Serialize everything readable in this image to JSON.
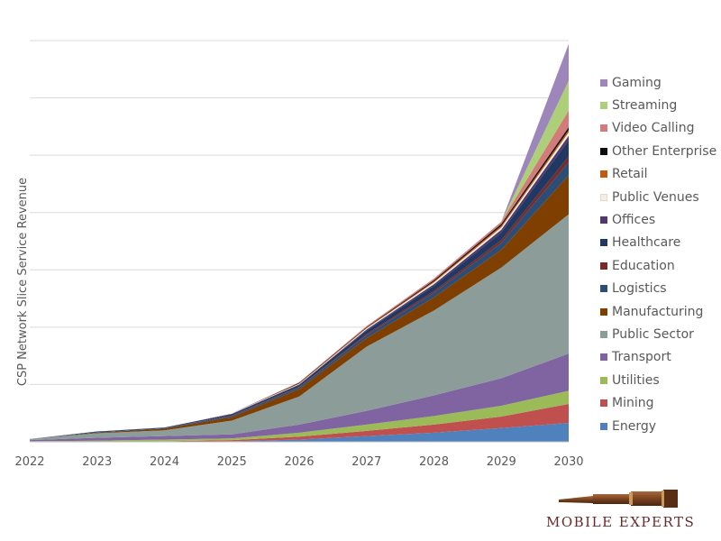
{
  "chart_data": {
    "type": "area",
    "stacked": true,
    "title": "",
    "xlabel": "",
    "ylabel": "CSP Network Slice Service Revenue",
    "x": [
      "2022",
      "2023",
      "2024",
      "2025",
      "2026",
      "2027",
      "2028",
      "2029",
      "2030"
    ],
    "ylim": [
      0,
      7
    ],
    "gridlines": true,
    "legend_position": "right",
    "series": [
      {
        "name": "Energy",
        "color": "#4f81bd",
        "values": [
          0,
          0,
          0,
          0.01,
          0.04,
          0.1,
          0.16,
          0.24,
          0.33
        ]
      },
      {
        "name": "Mining",
        "color": "#c0504d",
        "values": [
          0,
          0,
          0.01,
          0.02,
          0.05,
          0.09,
          0.14,
          0.2,
          0.33
        ]
      },
      {
        "name": "Utilities",
        "color": "#9bbb59",
        "values": [
          0.01,
          0.02,
          0.03,
          0.03,
          0.07,
          0.11,
          0.15,
          0.19,
          0.23
        ]
      },
      {
        "name": "Transport",
        "color": "#8064a2",
        "values": [
          0.02,
          0.05,
          0.06,
          0.07,
          0.14,
          0.24,
          0.36,
          0.48,
          0.65
        ]
      },
      {
        "name": "Public Sector",
        "color": "#8c9c98",
        "values": [
          0.02,
          0.08,
          0.1,
          0.24,
          0.49,
          1.12,
          1.48,
          1.93,
          2.43
        ]
      },
      {
        "name": "Manufacturing",
        "color": "#7f3f00",
        "values": [
          0,
          0.01,
          0.03,
          0.06,
          0.13,
          0.15,
          0.23,
          0.31,
          0.68
        ]
      },
      {
        "name": "Logistics",
        "color": "#2c4d75",
        "values": [
          0,
          0.01,
          0.01,
          0.02,
          0.03,
          0.05,
          0.08,
          0.12,
          0.23
        ]
      },
      {
        "name": "Education",
        "color": "#772c2a",
        "values": [
          0,
          0,
          0,
          0.01,
          0.01,
          0.02,
          0.03,
          0.05,
          0.1
        ]
      },
      {
        "name": "Healthcare",
        "color": "#1f3864",
        "values": [
          0,
          0.01,
          0.01,
          0.02,
          0.03,
          0.06,
          0.09,
          0.13,
          0.28
        ]
      },
      {
        "name": "Offices",
        "color": "#4f3a6b",
        "values": [
          0,
          0,
          0,
          0.01,
          0.01,
          0.02,
          0.03,
          0.05,
          0.08
        ]
      },
      {
        "name": "Public Venues",
        "color": "#f5eee6",
        "values": [
          0,
          0,
          0,
          0.01,
          0.01,
          0.02,
          0.03,
          0.04,
          0.06
        ]
      },
      {
        "name": "Retail",
        "color": "#c55a11",
        "values": [
          0,
          0,
          0,
          0,
          0.01,
          0.01,
          0.02,
          0.03,
          0.04
        ]
      },
      {
        "name": "Other Enterprise",
        "color": "#0d0d0d",
        "values": [
          0,
          0,
          0,
          0,
          0.01,
          0.01,
          0.02,
          0.03,
          0.05
        ]
      },
      {
        "name": "Video Calling",
        "color": "#d27b78",
        "values": [
          0,
          0,
          0,
          0,
          0.01,
          0.02,
          0.03,
          0.04,
          0.29
        ]
      },
      {
        "name": "Streaming",
        "color": "#aecf7a",
        "values": [
          0,
          0,
          0,
          0,
          0,
          0,
          0,
          0,
          0.52
        ]
      },
      {
        "name": "Gaming",
        "color": "#9d86ba",
        "values": [
          0,
          0,
          0,
          0,
          0,
          0,
          0,
          0,
          0.64
        ]
      }
    ]
  },
  "brand": {
    "name": "MOBILE EXPERTS",
    "accent": "#6b2a2a"
  }
}
